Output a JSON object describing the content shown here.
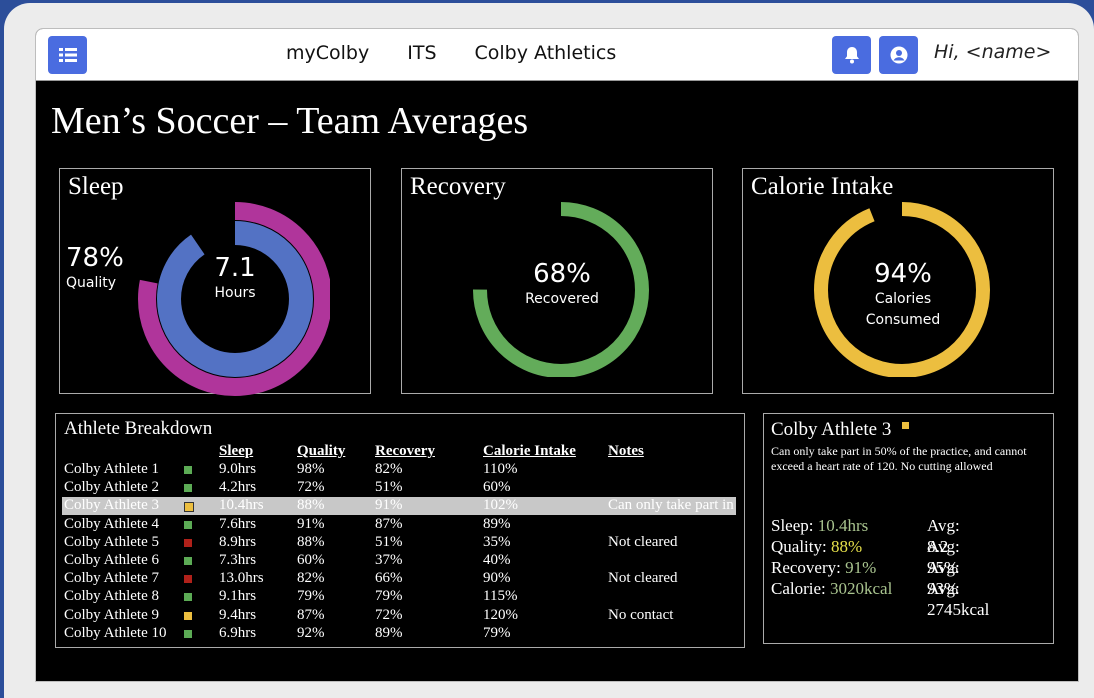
{
  "nav": {
    "menu_icon": "list-icon",
    "links": [
      "myColby",
      "ITS",
      "Colby Athletics"
    ],
    "bell_icon": "bell-icon",
    "user_icon": "user-circle-icon",
    "greeting": "Hi, <name>"
  },
  "page_title": "Men’s Soccer – Team Averages",
  "cards": {
    "sleep": {
      "title": "Sleep",
      "quality_value": "78%",
      "quality_label": "Quality",
      "hours_value": "7.1",
      "hours_label": "Hours",
      "outer_color": "#b0359b",
      "inner_color": "#5372c4"
    },
    "recovery": {
      "title": "Recovery",
      "value": "68%",
      "label": "Recovered",
      "color": "#63ac5a"
    },
    "calorie": {
      "title": "Calorie Intake",
      "value": "94%",
      "label_line1": "Calories",
      "label_line2": "Consumed",
      "color": "#ecbe3f"
    }
  },
  "breakdown": {
    "title": "Athlete Breakdown",
    "columns": [
      "Sleep",
      "Quality",
      "Recovery",
      "Calorie Intake",
      "Notes"
    ],
    "rows": [
      {
        "name": "Colby Athlete 1",
        "status": "#5cab55",
        "sleep": "9.0hrs",
        "quality": "98%",
        "recovery": "82%",
        "calorie": "110%",
        "notes": ""
      },
      {
        "name": "Colby Athlete 2",
        "status": "#5cab55",
        "sleep": "4.2hrs",
        "quality": "72%",
        "recovery": "51%",
        "calorie": "60%",
        "notes": ""
      },
      {
        "name": "Colby Athlete 3",
        "status": "#ecbe3f",
        "sleep": "10.4hrs",
        "quality": "88%",
        "recovery": "91%",
        "calorie": "102%",
        "notes": "Can only take part in",
        "selected": true
      },
      {
        "name": "Colby Athlete 4",
        "status": "#5cab55",
        "sleep": "7.6hrs",
        "quality": "91%",
        "recovery": "87%",
        "calorie": "89%",
        "notes": ""
      },
      {
        "name": "Colby Athlete 5",
        "status": "#b0211a",
        "sleep": "8.9hrs",
        "quality": "88%",
        "recovery": "51%",
        "calorie": "35%",
        "notes": "Not cleared"
      },
      {
        "name": "Colby Athlete 6",
        "status": "#5cab55",
        "sleep": "7.3hrs",
        "quality": "60%",
        "recovery": "37%",
        "calorie": "40%",
        "notes": ""
      },
      {
        "name": "Colby Athlete 7",
        "status": "#b0211a",
        "sleep": "13.0hrs",
        "quality": "82%",
        "recovery": "66%",
        "calorie": "90%",
        "notes": "Not cleared"
      },
      {
        "name": "Colby Athlete 8",
        "status": "#5cab55",
        "sleep": "9.1hrs",
        "quality": "79%",
        "recovery": "79%",
        "calorie": "115%",
        "notes": ""
      },
      {
        "name": "Colby Athlete 9",
        "status": "#ecbe3f",
        "sleep": "9.4hrs",
        "quality": "87%",
        "recovery": "72%",
        "calorie": "120%",
        "notes": "No contact"
      },
      {
        "name": "Colby Athlete 10",
        "status": "#5cab55",
        "sleep": "6.9hrs",
        "quality": "92%",
        "recovery": "89%",
        "calorie": "79%",
        "notes": ""
      }
    ]
  },
  "detail": {
    "name": "Colby Athlete 3",
    "status": "#ecbe3f",
    "note": "Can only take part in 50% of the practice, and cannot exceed a heart rate of 120. No cutting allowed",
    "stats": [
      {
        "label": "Sleep: ",
        "value": "10.4hrs",
        "color": "#a9c48f",
        "avg": "Avg: 8.2"
      },
      {
        "label": "Quality: ",
        "value": "88%",
        "color": "#e6e04a",
        "avg": "Avg: 95%"
      },
      {
        "label": "Recovery: ",
        "value": "91%",
        "color": "#a9c48f",
        "avg": "Avg: 93%"
      },
      {
        "label": "Calorie: ",
        "value": "3020kcal",
        "color": "#a9c48f",
        "avg": "Avg: 2745kcal"
      }
    ]
  }
}
